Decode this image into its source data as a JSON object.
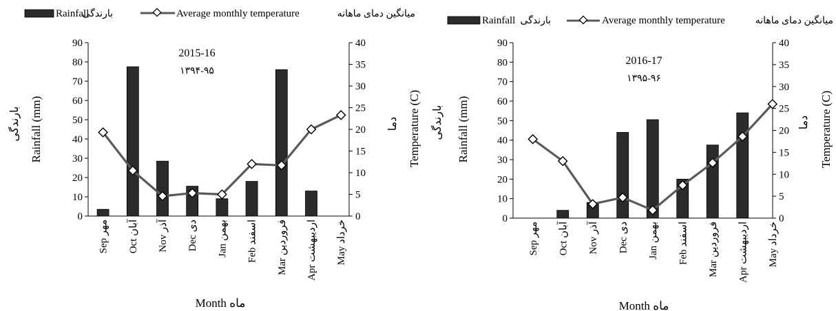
{
  "legend": {
    "rainfall_fa": "بارندگی",
    "rainfall_en": "Rainfall",
    "temperature_en": "Average monthly temperature",
    "temperature_fa": "میانگین دمای ماهانه"
  },
  "colors": {
    "bar": "#2b2b2b",
    "line": "#595959",
    "marker_fill": "#ffffff",
    "marker_stroke": "#000000"
  },
  "chart_data": [
    {
      "type": "bar+line",
      "title": "2015-16",
      "subtitle": "۱۳۹۴-۹۵",
      "x_title": "Month ماه",
      "y_left_title_en": "Rainfall (mm)",
      "y_left_title_fa": "بارندگی",
      "y_right_title_en": "Temperature (C)",
      "y_right_title_fa": "دما",
      "categories": [
        "Sep مهر",
        "Oct آبان",
        "Nov آذر",
        "Dec دی",
        "Jan بهمن",
        "Feb اسفند",
        "Mar فروردین",
        "Apr اردیبهشت",
        "May خرداد"
      ],
      "y_left_ticks": [
        "0",
        "10",
        "20",
        "30",
        "40",
        "50",
        "60",
        "70",
        "80",
        "90"
      ],
      "y_right_ticks": [
        "0",
        "5",
        "10",
        "15",
        "20",
        "25",
        "30",
        "35",
        "40"
      ],
      "y_left_range": [
        0,
        90
      ],
      "y_right_range": [
        0,
        40
      ],
      "series": [
        {
          "name": "Rainfall",
          "kind": "bar",
          "axis": "left",
          "values": [
            3.5,
            77.5,
            28.5,
            15.5,
            9,
            18,
            76,
            13,
            0
          ]
        },
        {
          "name": "Average monthly temperature",
          "kind": "line",
          "axis": "right",
          "values": [
            19.3,
            10.5,
            4.6,
            5.3,
            5,
            12,
            11.7,
            20,
            23.3
          ]
        }
      ]
    },
    {
      "type": "bar+line",
      "title": "2016-17",
      "subtitle": "۱۳۹۵-۹۶",
      "x_title": "Month ماه",
      "y_left_title_en": "Rainfall (mm)",
      "y_left_title_fa": "بارندگی",
      "y_right_title_en": "Temperature (C)",
      "y_right_title_fa": "دما",
      "categories": [
        "Sep مهر",
        "Oct آبان",
        "Nov آذر",
        "Dec دی",
        "Jan بهمن",
        "Feb اسفند",
        "Mar فروردین",
        "Apr اردیبهشت",
        "May خرداد"
      ],
      "y_left_ticks": [
        "0",
        "10",
        "20",
        "30",
        "40",
        "50",
        "60",
        "70",
        "80",
        "90"
      ],
      "y_right_ticks": [
        "0",
        "5",
        "10",
        "15",
        "20",
        "25",
        "30",
        "35",
        "40"
      ],
      "y_left_range": [
        0,
        90
      ],
      "y_right_range": [
        0,
        40
      ],
      "series": [
        {
          "name": "Rainfall",
          "kind": "bar",
          "axis": "left",
          "values": [
            0,
            4,
            8,
            44,
            50.5,
            20,
            37.5,
            54,
            0
          ]
        },
        {
          "name": "Average monthly temperature",
          "kind": "line",
          "axis": "right",
          "values": [
            18,
            13,
            3.2,
            4.7,
            1.8,
            7.5,
            12.6,
            18.6,
            26
          ]
        }
      ]
    }
  ]
}
